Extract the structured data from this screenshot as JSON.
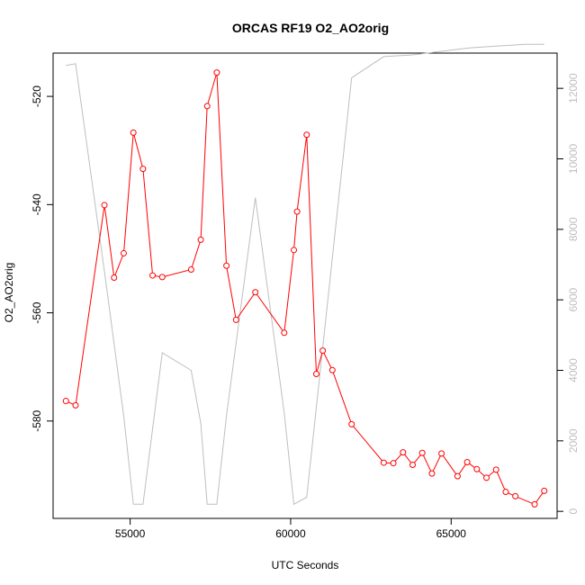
{
  "chart_data": {
    "type": "line",
    "title": "ORCAS RF19 O2_AO2orig",
    "xlabel": "UTC Seconds",
    "ylabel": "O2_AO2orig",
    "xlim": [
      52600,
      68300
    ],
    "ylim": [
      -598,
      -512
    ],
    "y2lim": [
      -200,
      13000
    ],
    "xticks": [
      55000,
      60000,
      65000
    ],
    "yticks": [
      -580,
      -560,
      -540,
      -520
    ],
    "y2ticks": [
      0,
      2000,
      4000,
      6000,
      8000,
      10000,
      12000
    ],
    "series": [
      {
        "color": "#ff0000",
        "axis": "left",
        "marker": "circle",
        "x": [
          53000,
          53300,
          54200,
          54500,
          54800,
          55100,
          55400,
          55700,
          56000,
          56900,
          57200,
          57400,
          57700,
          58000,
          58300,
          58900,
          59800,
          60100,
          60200,
          60500,
          60800,
          61000,
          61300,
          61900,
          62900,
          63200,
          63500,
          63800,
          64100,
          64400,
          64700,
          65200,
          65500,
          65800,
          66100,
          66400,
          66700,
          67000,
          67600,
          67900
        ],
        "y": [
          -576.3,
          -577.1,
          -540.1,
          -553.5,
          -549.0,
          -526.7,
          -533.4,
          -553.1,
          -553.4,
          -552.0,
          -546.5,
          -521.8,
          -515.6,
          -551.3,
          -561.3,
          -556.2,
          -563.7,
          -548.4,
          -541.3,
          -527.1,
          -571.3,
          -567.0,
          -570.6,
          -580.6,
          -587.7,
          -587.8,
          -585.8,
          -588.1,
          -585.9,
          -589.7,
          -586.0,
          -590.2,
          -587.6,
          -588.9,
          -590.5,
          -589.0,
          -593.1,
          -593.9,
          -595.4,
          -592.9
        ]
      },
      {
        "color": "#bebebe",
        "axis": "right",
        "marker": "none",
        "x": [
          53000,
          53300,
          54200,
          54800,
          55100,
          55400,
          56000,
          56900,
          57200,
          57400,
          57700,
          58000,
          58900,
          59800,
          60100,
          60500,
          61900,
          62900,
          63800,
          64700,
          65600,
          66400,
          67300,
          67900
        ],
        "y": [
          12650,
          12700,
          6800,
          2700,
          200,
          200,
          4500,
          4000,
          2500,
          200,
          200,
          2700,
          8900,
          2800,
          200,
          400,
          12300,
          12900,
          12950,
          13050,
          13150,
          13200,
          13250,
          13250
        ]
      }
    ]
  }
}
